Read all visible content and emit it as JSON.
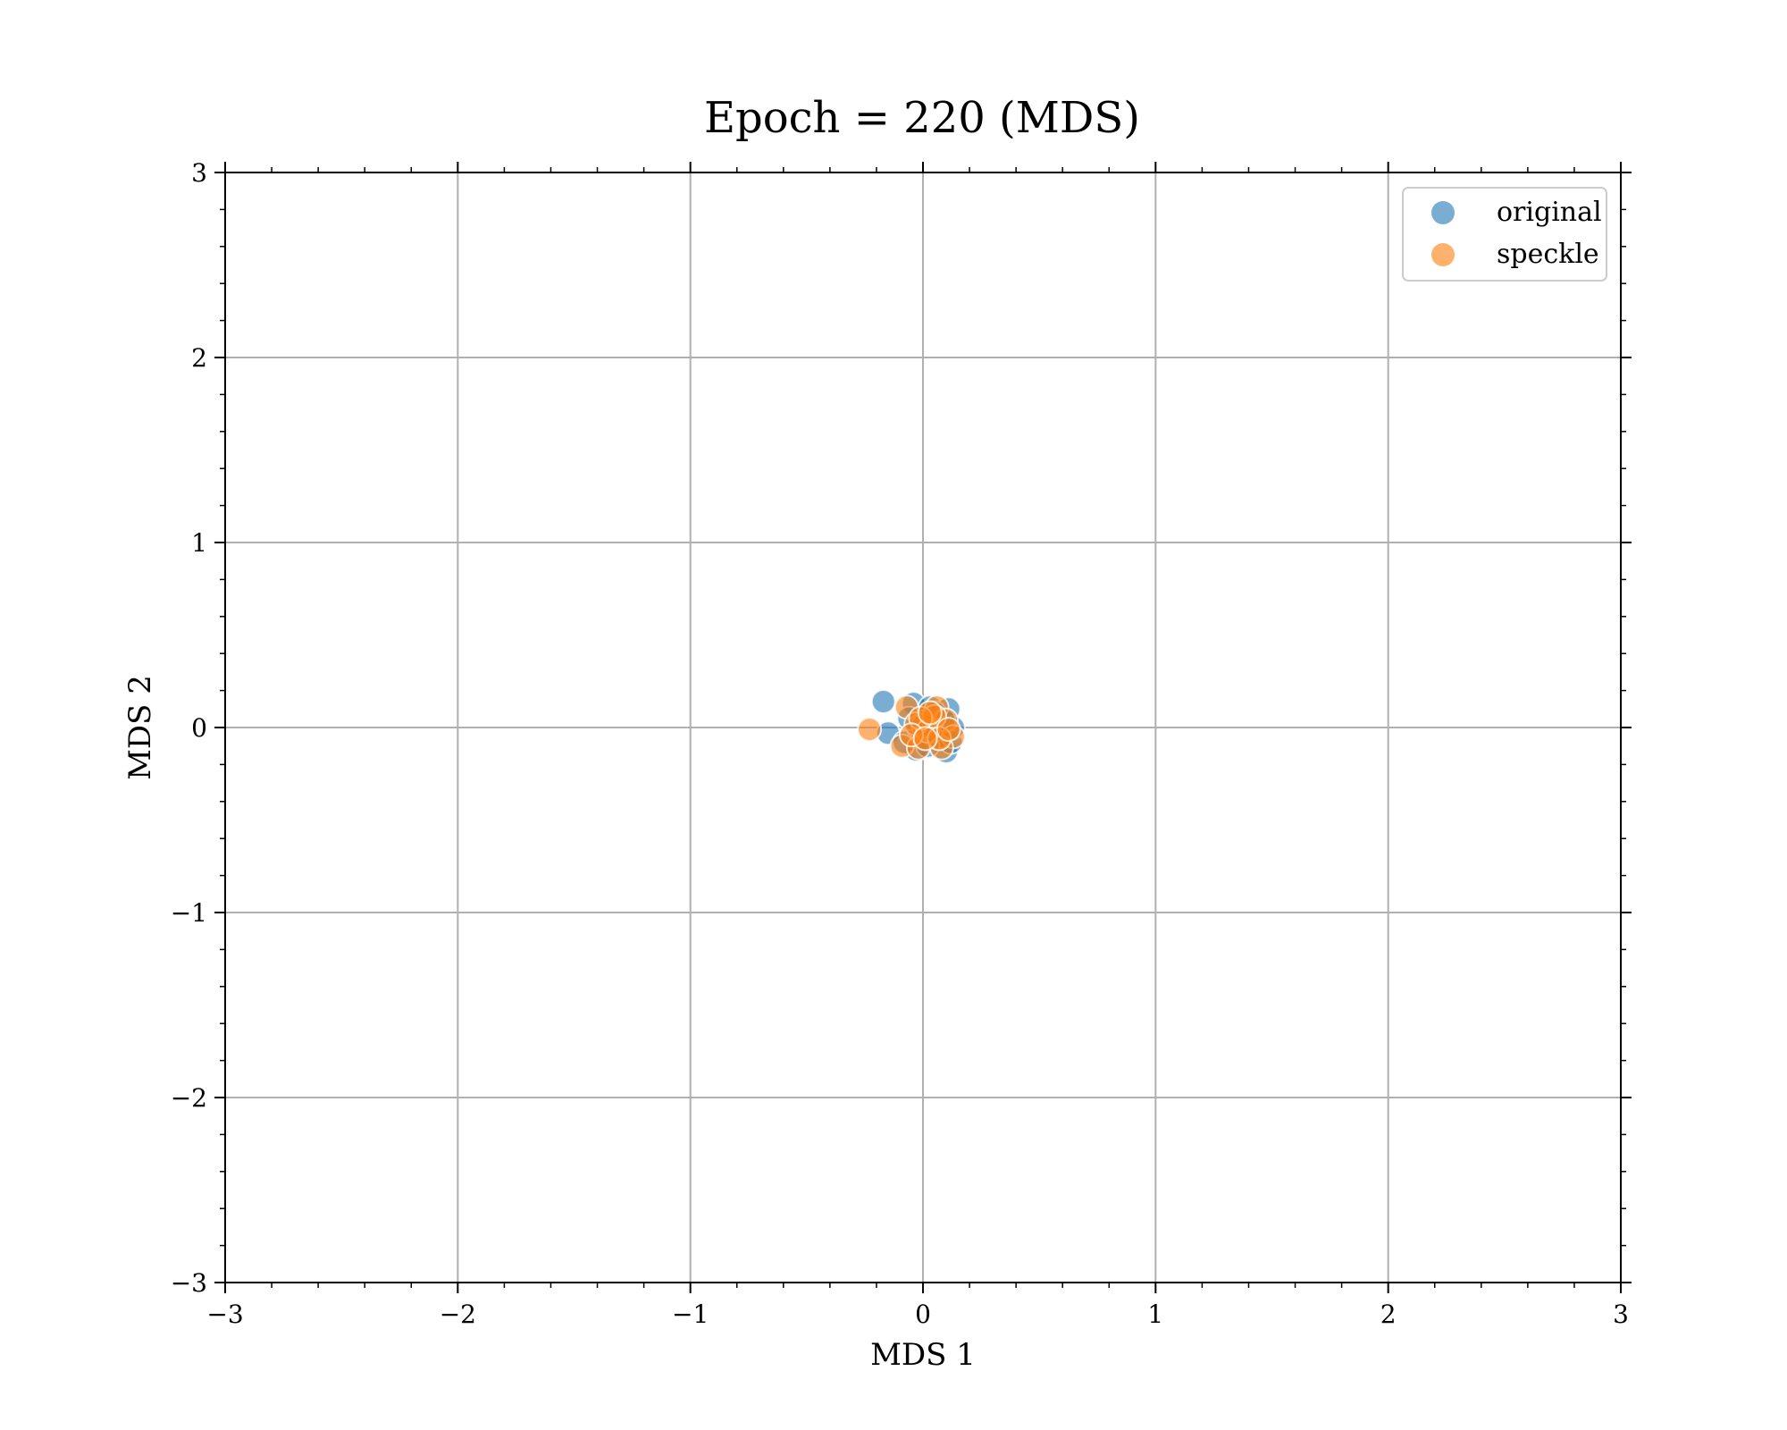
{
  "chart_data": {
    "type": "scatter",
    "title": "Epoch = 220 (MDS)",
    "xlabel": "MDS 1",
    "ylabel": "MDS 2",
    "xlim": [
      -3,
      3
    ],
    "ylim": [
      -3,
      3
    ],
    "xticks": [
      -3,
      -2,
      -1,
      0,
      1,
      2,
      3
    ],
    "yticks": [
      -3,
      -2,
      -1,
      0,
      1,
      2,
      3
    ],
    "xtick_labels": [
      "−3",
      "−2",
      "−1",
      "0",
      "1",
      "2",
      "3"
    ],
    "ytick_labels": [
      "−3",
      "−2",
      "−1",
      "0",
      "1",
      "2",
      "3"
    ],
    "grid": true,
    "legend_position": "top-right",
    "series": [
      {
        "name": "original",
        "color": "#1f77b4",
        "points": [
          [
            -0.17,
            0.14
          ],
          [
            -0.15,
            -0.03
          ],
          [
            -0.04,
            0.13
          ],
          [
            0.03,
            0.11
          ],
          [
            0.11,
            0.1
          ],
          [
            -0.03,
            -0.12
          ],
          [
            0.1,
            -0.13
          ],
          [
            0.12,
            -0.08
          ],
          [
            0.13,
            0.0
          ],
          [
            -0.08,
            -0.08
          ],
          [
            0.0,
            0.03
          ],
          [
            0.05,
            0.08
          ],
          [
            -0.02,
            0.0
          ],
          [
            0.07,
            -0.05
          ],
          [
            0.02,
            -0.1
          ],
          [
            -0.06,
            0.05
          ],
          [
            0.09,
            0.04
          ],
          [
            0.04,
            -0.02
          ]
        ]
      },
      {
        "name": "speckle",
        "color": "#ff7f0e",
        "points": [
          [
            -0.23,
            -0.01
          ],
          [
            -0.07,
            0.11
          ],
          [
            0.06,
            0.11
          ],
          [
            0.1,
            0.04
          ],
          [
            0.13,
            -0.05
          ],
          [
            -0.09,
            -0.1
          ],
          [
            -0.02,
            -0.11
          ],
          [
            0.08,
            -0.11
          ],
          [
            0.0,
            0.01
          ],
          [
            -0.03,
            0.02
          ],
          [
            0.02,
            -0.02
          ],
          [
            0.05,
            0.06
          ],
          [
            -0.01,
            0.05
          ],
          [
            0.07,
            -0.06
          ],
          [
            0.11,
            -0.01
          ],
          [
            -0.05,
            -0.04
          ],
          [
            0.03,
            0.08
          ],
          [
            0.01,
            -0.06
          ]
        ]
      }
    ]
  }
}
